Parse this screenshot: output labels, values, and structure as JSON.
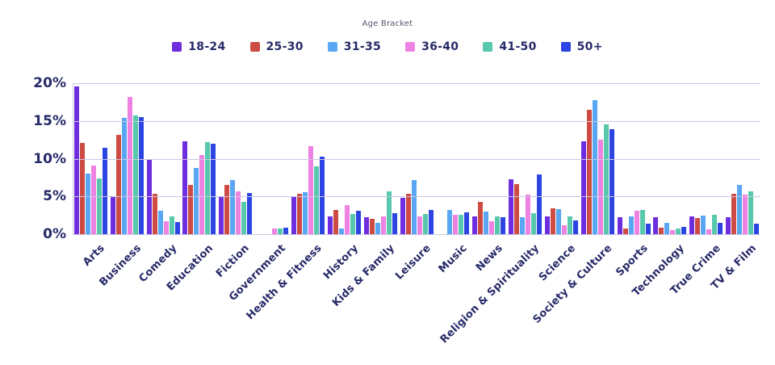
{
  "chart": {
    "legend_title": "Age Bracket",
    "yticks": [
      "20%",
      "15%",
      "10%",
      "5%",
      "0%"
    ],
    "grid_color": "#cbc7e2",
    "text_color": "#262a68"
  },
  "chart_data": {
    "type": "bar",
    "title": "Age Bracket",
    "categories": [
      "Arts",
      "Business",
      "Comedy",
      "Education",
      "Fiction",
      "Government",
      "Health & Fitness",
      "History",
      "Kids & Family",
      "Leisure",
      "Music",
      "News",
      "Religion & Spirituality",
      "Science",
      "Society & Culture",
      "Sports",
      "Technology",
      "True Crime",
      "TV & Film"
    ],
    "series": [
      {
        "name": "18-24",
        "color": "#6e2edf",
        "values": [
          19.6,
          5.0,
          9.8,
          12.3,
          5.0,
          0,
          4.9,
          2.4,
          2.3,
          4.8,
          0,
          2.4,
          7.3,
          2.4,
          12.3,
          2.3,
          2.3,
          2.4,
          2.3
        ]
      },
      {
        "name": "25-30",
        "color": "#cd4b43",
        "values": [
          12.1,
          13.2,
          5.4,
          6.5,
          6.5,
          0,
          5.3,
          3.2,
          2.0,
          5.3,
          0,
          4.3,
          6.6,
          3.4,
          16.5,
          0.8,
          0.9,
          2.1,
          5.4
        ]
      },
      {
        "name": "31-35",
        "color": "#59a7f3",
        "values": [
          8.0,
          15.4,
          3.1,
          8.8,
          7.2,
          0,
          5.6,
          0.7,
          1.5,
          7.2,
          3.2,
          3.0,
          2.3,
          3.3,
          17.8,
          2.4,
          1.5,
          2.5,
          6.5
        ]
      },
      {
        "name": "36-40",
        "color": "#ee82e3",
        "values": [
          9.1,
          18.2,
          1.7,
          10.5,
          5.7,
          0.8,
          11.7,
          3.8,
          2.4,
          2.4,
          2.6,
          1.7,
          5.2,
          1.2,
          12.5,
          3.1,
          0.5,
          0.6,
          5.2
        ]
      },
      {
        "name": "41-50",
        "color": "#57c8ab",
        "values": [
          7.4,
          15.7,
          2.4,
          12.2,
          4.3,
          0.7,
          9.0,
          2.7,
          5.7,
          2.7,
          2.6,
          2.4,
          2.8,
          2.4,
          14.6,
          3.2,
          0.7,
          2.6,
          5.7
        ]
      },
      {
        "name": "50+",
        "color": "#2c45e2",
        "values": [
          11.4,
          15.5,
          1.6,
          12.0,
          5.5,
          0.9,
          10.3,
          3.1,
          2.8,
          3.2,
          2.9,
          2.2,
          7.9,
          1.8,
          13.9,
          1.4,
          1.0,
          1.5,
          1.4
        ]
      }
    ],
    "xlabel": "",
    "ylabel": "",
    "ylim": [
      0,
      20
    ],
    "ytick_step": 5,
    "ytick_format": "percent",
    "grid": true,
    "legend_position": "top"
  }
}
